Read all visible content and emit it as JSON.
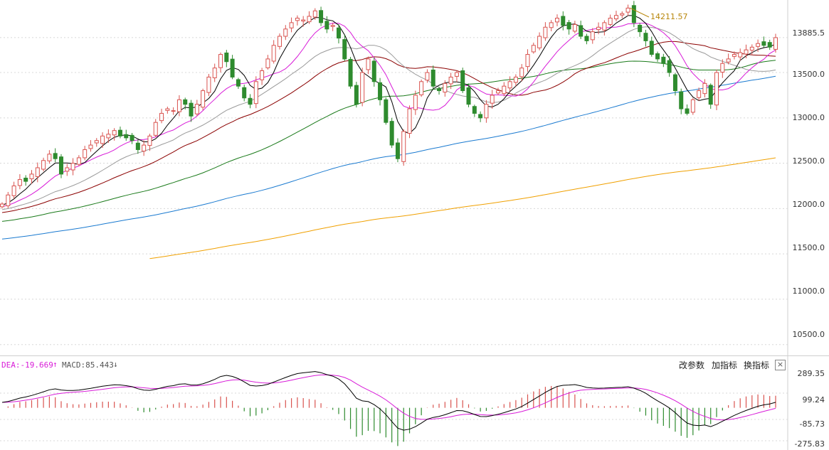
{
  "chart_data": [
    {
      "type": "candlestick",
      "y_ticks": [
        "13885.5",
        "13500.0",
        "13000.0",
        "12500.0",
        "12000.0",
        "11500.0",
        "11000.0",
        "10500.0"
      ],
      "ylim": [
        10380,
        14300
      ],
      "peak_label": "14211.57",
      "peak_value": 14211.57,
      "up_color": "#d9534f",
      "down_color": "#2e8b2e",
      "grid": true,
      "closes": [
        12050,
        12150,
        12250,
        12320,
        12300,
        12380,
        12450,
        12530,
        12600,
        12550,
        12380,
        12450,
        12500,
        12560,
        12650,
        12700,
        12750,
        12800,
        12820,
        12860,
        12800,
        12780,
        12750,
        12650,
        12700,
        12800,
        12950,
        13050,
        13100,
        13080,
        13200,
        13150,
        13020,
        13150,
        13300,
        13450,
        13550,
        13700,
        13620,
        13450,
        13350,
        13220,
        13150,
        13400,
        13520,
        13650,
        13800,
        13900,
        13980,
        14050,
        14100,
        14080,
        14120,
        14180,
        14050,
        13980,
        14020,
        13880,
        13650,
        13350,
        13150,
        13500,
        13650,
        13400,
        13200,
        12950,
        12700,
        12550,
        12850,
        13100,
        13250,
        13400,
        13500,
        13350,
        13300,
        13380,
        13450,
        13500,
        13300,
        13150,
        13050,
        13000,
        13150,
        13250,
        13300,
        13350,
        13400,
        13450,
        13550,
        13700,
        13800,
        13900,
        14000,
        14050,
        14100,
        14020,
        13980,
        14030,
        13900,
        13850,
        13950,
        14000,
        14050,
        14100,
        14130,
        14150,
        14211,
        14050,
        13950,
        13850,
        13700,
        13650,
        13600,
        13500,
        13300,
        13100,
        13050,
        13200,
        13300,
        13380,
        13150,
        13500,
        13600,
        13650,
        13700,
        13720,
        13750,
        13780,
        13820,
        13800,
        13780,
        13885
      ]
    },
    {
      "type": "macd",
      "indicator": {
        "dea_label": "DEA:-19.669",
        "dea_arrow": "↑",
        "macd_label": "MACD:85.443",
        "macd_arrow": "↓"
      },
      "y_ticks": [
        "289.35",
        "99.24",
        "-85.73",
        "-275.83"
      ],
      "ylim": [
        -275.83,
        289.35
      ]
    }
  ],
  "toolbar": {
    "change_params": "改参数",
    "add_indicator": "加指标",
    "switch_indicator": "换指标",
    "close": "×"
  },
  "colors": {
    "ma5": "#000000",
    "ma10": "#d81bd8",
    "ma20": "#9a9a9a",
    "ma30": "#8b0000",
    "ma60": "#1a7a1a",
    "ma120": "#1a7ad0",
    "ma250": "#f0a000",
    "dif": "#000000",
    "dea": "#d81bd8",
    "hist_pos": "#d9534f",
    "hist_neg": "#2e8b2e"
  }
}
